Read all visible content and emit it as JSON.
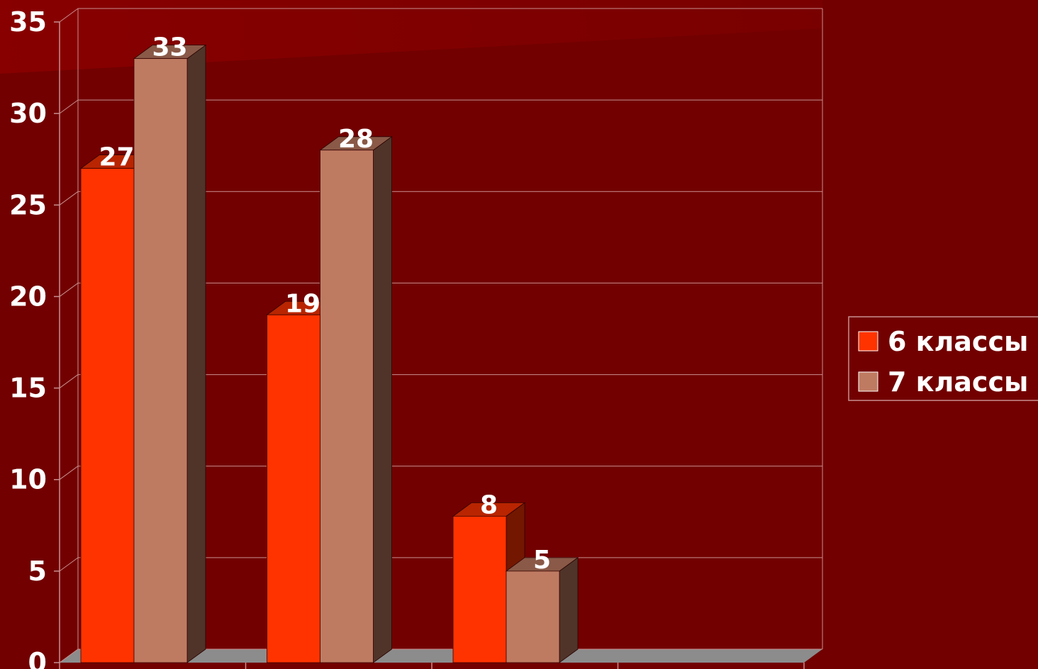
{
  "chart_data": {
    "type": "bar",
    "title": "",
    "xlabel": "",
    "ylabel": "",
    "categories": [
      "",
      "",
      "",
      ""
    ],
    "ylim": [
      0,
      35
    ],
    "yticks": [
      0,
      5,
      10,
      15,
      20,
      25,
      30,
      35
    ],
    "grid": true,
    "legend_position": "right",
    "series": [
      {
        "name": "6 классы",
        "values": [
          27,
          19,
          8,
          null
        ],
        "color": "#ff3300"
      },
      {
        "name": "7 классы",
        "values": [
          33,
          28,
          5,
          null
        ],
        "color": "#bf7b62"
      }
    ]
  },
  "colors": {
    "background": "#720000",
    "gridline": "#c98f8f",
    "floor": "#8c8c8c"
  }
}
